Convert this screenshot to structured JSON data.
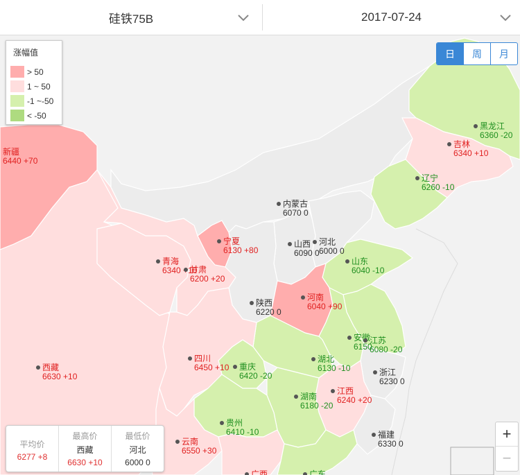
{
  "header": {
    "product": "硅铁75B",
    "date": "2017-07-24"
  },
  "legend": {
    "title": "涨幅值",
    "items": [
      {
        "label": "> 50",
        "color": "#ffadad"
      },
      {
        "label": "1 ~ 50",
        "color": "#ffdede"
      },
      {
        "label": "-1 ~-50",
        "color": "#d5f0ad"
      },
      {
        "label": "< -50",
        "color": "#aedb80"
      }
    ]
  },
  "toggle": [
    "日",
    "周",
    "月"
  ],
  "toggle_active": "日",
  "stats": {
    "avg_label": "平均价",
    "avg_value": "6277 +8",
    "max_label": "最高价",
    "max_place": "西藏",
    "max_value": "6630 +10",
    "min_label": "最低价",
    "min_place": "河北",
    "min_value": "6000 0"
  },
  "zoom": {
    "in": "+",
    "out": "−"
  },
  "provinces": [
    {
      "name": "新疆",
      "value": "6440 +70",
      "level": "high"
    },
    {
      "name": "吉林",
      "value": "6340 +10",
      "level": "up"
    },
    {
      "name": "黑龙江",
      "value": "6360 -20",
      "level": "down"
    },
    {
      "name": "辽宁",
      "value": "6260 -10",
      "level": "down"
    },
    {
      "name": "内蒙古",
      "value": "6070 0",
      "level": "flat"
    },
    {
      "name": "宁夏",
      "value": "6130 +80",
      "level": "high"
    },
    {
      "name": "山西",
      "value": "6090 0",
      "level": "flat"
    },
    {
      "name": "河北",
      "value": "6000 0",
      "level": "flat"
    },
    {
      "name": "青海",
      "value": "6340 +10",
      "level": "up"
    },
    {
      "name": "甘肃",
      "value": "6200 +20",
      "level": "up"
    },
    {
      "name": "山东",
      "value": "6040 -10",
      "level": "down"
    },
    {
      "name": "陕西",
      "value": "6220 0",
      "level": "flat"
    },
    {
      "name": "河南",
      "value": "6040 +90",
      "level": "high"
    },
    {
      "name": "安徽",
      "value": "6150",
      "level": "down"
    },
    {
      "name": "江苏",
      "value": "6080 -20",
      "level": "down"
    },
    {
      "name": "西藏",
      "value": "6630 +10",
      "level": "up"
    },
    {
      "name": "四川",
      "value": "6450 +10",
      "level": "up"
    },
    {
      "name": "湖北",
      "value": "6130 -10",
      "level": "down"
    },
    {
      "name": "重庆",
      "value": "6420 -20",
      "level": "down"
    },
    {
      "name": "浙江",
      "value": "6230 0",
      "level": "flat"
    },
    {
      "name": "江西",
      "value": "6240 +20",
      "level": "up"
    },
    {
      "name": "湖南",
      "value": "6180 -20",
      "level": "down"
    },
    {
      "name": "贵州",
      "value": "6410 -10",
      "level": "down"
    },
    {
      "name": "云南",
      "value": "6550 +30",
      "level": "up"
    },
    {
      "name": "福建",
      "value": "6330 0",
      "level": "flat"
    },
    {
      "name": "广东",
      "value": "",
      "level": "down"
    },
    {
      "name": "广西",
      "value": "",
      "level": "up"
    }
  ]
}
